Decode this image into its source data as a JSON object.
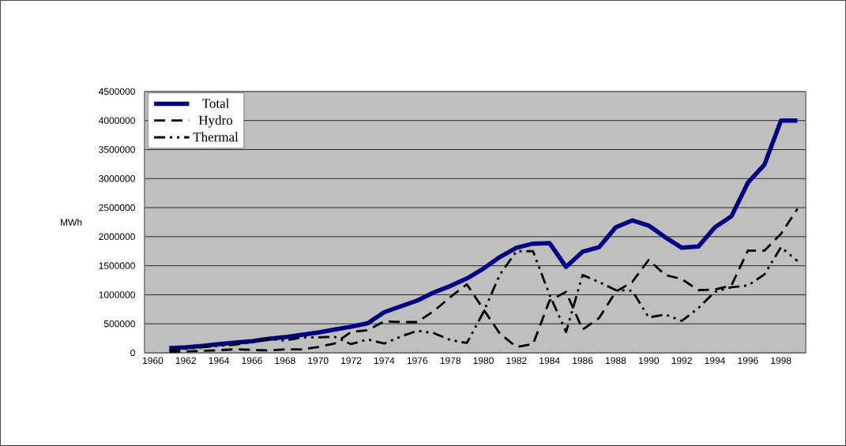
{
  "chart_data": {
    "type": "line",
    "ylabel": "MWh",
    "categories": [
      "1960",
      null,
      "1962",
      null,
      "1964",
      null,
      "1966",
      null,
      "1968",
      null,
      "1970",
      null,
      "1972",
      null,
      "1974",
      null,
      "1976",
      null,
      "1978",
      null,
      "1980",
      null,
      "1982",
      null,
      "1984",
      null,
      "1986",
      null,
      "1988",
      null,
      "1990",
      null,
      "1992",
      null,
      "1994",
      null,
      "1996",
      null,
      "1998",
      null
    ],
    "ylim": [
      0,
      4500000
    ],
    "yticks": [
      0,
      500000,
      1000000,
      1500000,
      2000000,
      2500000,
      3000000,
      3500000,
      4000000,
      4500000
    ],
    "grid": "y",
    "legend": "top left",
    "series": [
      {
        "name": "Total",
        "color": "#000080",
        "line_style": "solid",
        "values": [
          null,
          80000,
          95000,
          120000,
          150000,
          175000,
          200000,
          240000,
          270000,
          310000,
          350000,
          400000,
          450000,
          510000,
          700000,
          800000,
          900000,
          1040000,
          1150000,
          1280000,
          1450000,
          1650000,
          1810000,
          1880000,
          1890000,
          1480000,
          1740000,
          1820000,
          2160000,
          2280000,
          2190000,
          1990000,
          1810000,
          1830000,
          2160000,
          2350000,
          2930000,
          3240000,
          4000000,
          4000000
        ]
      },
      {
        "name": "Hydro",
        "color": "#000000",
        "line_style": "dashed",
        "values": [
          null,
          20000,
          25000,
          35000,
          45000,
          60000,
          50000,
          40000,
          60000,
          60000,
          100000,
          160000,
          360000,
          390000,
          540000,
          530000,
          530000,
          720000,
          960000,
          1180000,
          750000,
          330000,
          100000,
          150000,
          900000,
          1050000,
          400000,
          600000,
          1050000,
          1220000,
          1600000,
          1340000,
          1270000,
          1080000,
          1090000,
          1160000,
          1760000,
          1760000,
          2050000,
          2480000
        ]
      },
      {
        "name": "Thermal",
        "color": "#000000",
        "line_style": "dashdotdot",
        "values": [
          null,
          50000,
          70000,
          95000,
          120000,
          140000,
          185000,
          240000,
          210000,
          265000,
          265000,
          275000,
          150000,
          230000,
          160000,
          280000,
          380000,
          340000,
          220000,
          170000,
          700000,
          1350000,
          1750000,
          1750000,
          1000000,
          360000,
          1340000,
          1220000,
          1080000,
          1070000,
          610000,
          660000,
          550000,
          770000,
          1050000,
          1130000,
          1160000,
          1350000,
          1820000,
          1580000
        ]
      }
    ]
  }
}
